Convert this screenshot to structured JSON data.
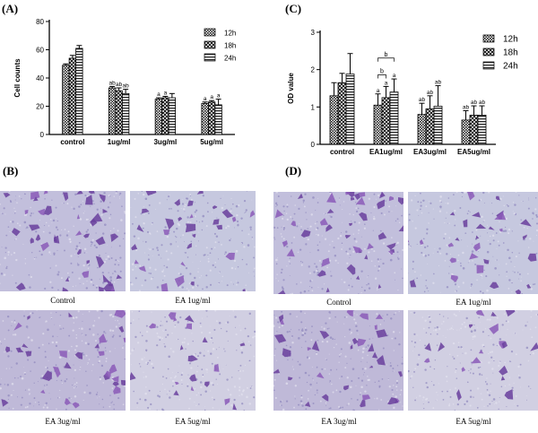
{
  "panels": {
    "a": "(A)",
    "b": "(B)",
    "c": "(C)",
    "d": "(D)"
  },
  "chart_data": [
    {
      "id": "A",
      "type": "bar",
      "title": "",
      "xlabel": "",
      "ylabel": "Cell counts",
      "ylim": [
        0,
        80
      ],
      "yticks": [
        "0",
        "20",
        "40",
        "60",
        "80"
      ],
      "categories": [
        "control",
        "1ug/ml",
        "3ug/ml",
        "5ug/ml"
      ],
      "legend_position": "top-right",
      "series": [
        {
          "name": "12h",
          "values": [
            49,
            33,
            25,
            22
          ],
          "errors": [
            1,
            1,
            1,
            1
          ],
          "annotations": [
            "",
            "ab",
            "a",
            "a"
          ]
        },
        {
          "name": "18h",
          "values": [
            54,
            31,
            26,
            23
          ],
          "errors": [
            2,
            2,
            1,
            1
          ],
          "annotations": [
            "",
            "ab",
            "a",
            "a"
          ]
        },
        {
          "name": "24h",
          "values": [
            61,
            29,
            26,
            21
          ],
          "errors": [
            2,
            3,
            3,
            4
          ],
          "annotations": [
            "",
            "ab",
            "",
            "a"
          ]
        }
      ]
    },
    {
      "id": "C",
      "type": "bar",
      "title": "",
      "xlabel": "",
      "ylabel": "OD value",
      "ylim": [
        0,
        3
      ],
      "yticks": [
        "0",
        "1",
        "2",
        "3"
      ],
      "categories": [
        "control",
        "EA1ug/ml",
        "EA3ug/ml",
        "EA5ug/ml"
      ],
      "legend_position": "top-right",
      "series": [
        {
          "name": "12h",
          "values": [
            1.3,
            1.05,
            0.8,
            0.65
          ],
          "errors": [
            0.35,
            0.3,
            0.3,
            0.25
          ],
          "annotations": [
            "",
            "a",
            "ab",
            "ab"
          ]
        },
        {
          "name": "18h",
          "values": [
            1.65,
            1.25,
            0.95,
            0.78
          ],
          "errors": [
            0.25,
            0.3,
            0.35,
            0.25
          ],
          "annotations": [
            "",
            "a",
            "ab",
            "ab"
          ]
        },
        {
          "name": "24h",
          "values": [
            1.88,
            1.4,
            1.02,
            0.78
          ],
          "errors": [
            0.55,
            0.35,
            0.55,
            0.25
          ],
          "annotations": [
            "",
            "a",
            "ab",
            "ab"
          ]
        }
      ],
      "brackets": [
        {
          "label": "b",
          "from": [
            1,
            0
          ],
          "to": [
            1,
            2
          ]
        },
        {
          "label": "b",
          "from": [
            1,
            0
          ],
          "to": [
            1,
            1
          ]
        }
      ]
    }
  ],
  "micrographs_b": [
    {
      "caption": "Control"
    },
    {
      "caption": "EA 1ug/ml"
    },
    {
      "caption": "EA 3ug/ml"
    },
    {
      "caption": "EA 5ug/ml"
    }
  ],
  "micrographs_d": [
    {
      "caption": "Control"
    },
    {
      "caption": "EA 1ug/ml"
    },
    {
      "caption": "EA 3ug/ml"
    },
    {
      "caption": "EA 5ug/ml"
    }
  ]
}
